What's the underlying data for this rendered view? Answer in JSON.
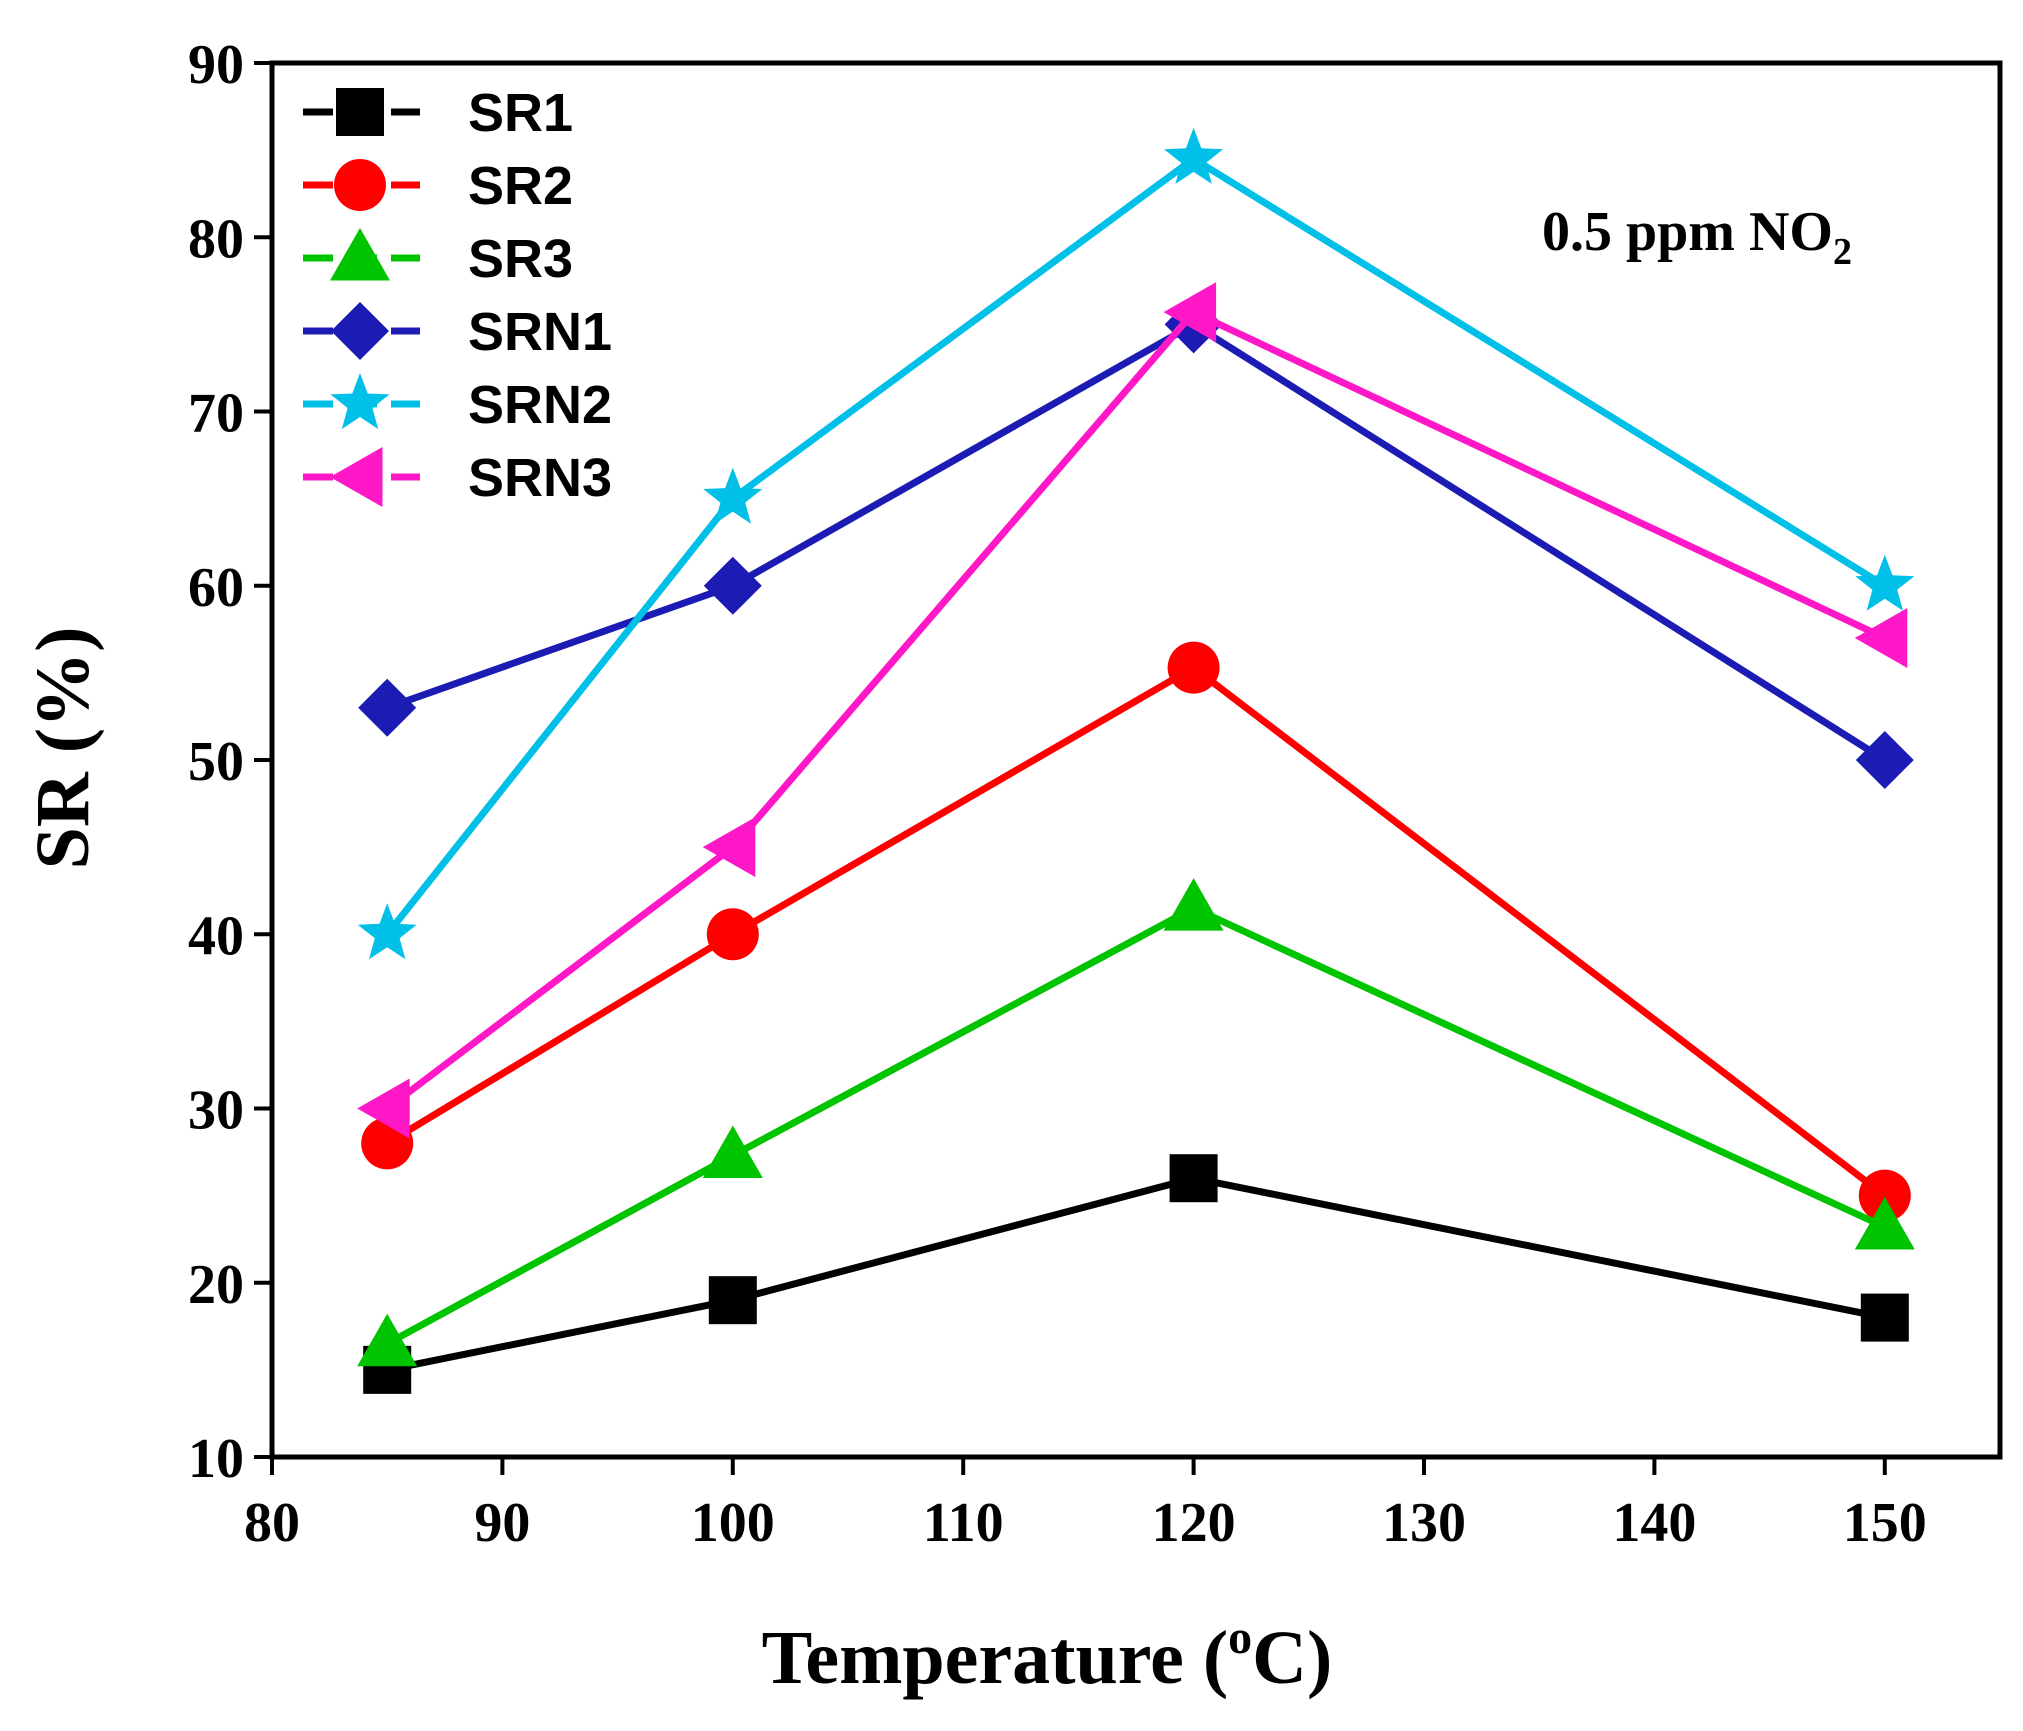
{
  "chart_data": {
    "type": "line",
    "title": "",
    "xlabel": "Temperature",
    "xlabel_unit_sup": "o",
    "xlabel_unit": "C",
    "ylabel": "SR (%)",
    "xlim": [
      80,
      155
    ],
    "ylim": [
      10,
      90
    ],
    "xticks": [
      80,
      90,
      100,
      110,
      120,
      130,
      140,
      150
    ],
    "yticks": [
      10,
      20,
      30,
      40,
      50,
      60,
      70,
      80,
      90
    ],
    "x": [
      85,
      100,
      120,
      150
    ],
    "annotation": {
      "text": "0.5 ppm NO",
      "subscript": "2"
    },
    "legend_position": "top-left",
    "series": [
      {
        "name": "SR1",
        "color": "#000000",
        "marker": "square",
        "values": [
          15,
          19,
          26,
          18
        ]
      },
      {
        "name": "SR2",
        "color": "#ff0000",
        "marker": "circle",
        "values": [
          28,
          40,
          55.3,
          25
        ]
      },
      {
        "name": "SR3",
        "color": "#00c400",
        "marker": "triangle-up",
        "values": [
          16.5,
          27.3,
          41.5,
          23.2
        ]
      },
      {
        "name": "SRN1",
        "color": "#1c1cb4",
        "marker": "diamond",
        "values": [
          53,
          60,
          75,
          50
        ]
      },
      {
        "name": "SRN2",
        "color": "#00c0e8",
        "marker": "star",
        "values": [
          40,
          65,
          84.5,
          60
        ]
      },
      {
        "name": "SRN3",
        "color": "#ff18c8",
        "marker": "triangle-left",
        "values": [
          30,
          45,
          75.7,
          57
        ]
      }
    ]
  }
}
